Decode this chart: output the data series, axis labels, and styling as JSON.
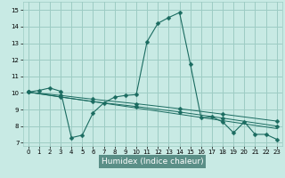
{
  "xlabel": "Humidex (Indice chaleur)",
  "xlim": [
    -0.5,
    23.5
  ],
  "ylim": [
    6.8,
    15.5
  ],
  "yticks": [
    7,
    8,
    9,
    10,
    11,
    12,
    13,
    14,
    15
  ],
  "xticks": [
    0,
    1,
    2,
    3,
    4,
    5,
    6,
    7,
    8,
    9,
    10,
    11,
    12,
    13,
    14,
    15,
    16,
    17,
    18,
    19,
    20,
    21,
    22,
    23
  ],
  "bg_color": "#c8eae4",
  "grid_color": "#9dccc4",
  "line_color": "#1a6b60",
  "marker": "D",
  "line1": {
    "x": [
      0,
      1,
      2,
      3,
      4,
      5,
      6,
      7,
      8,
      9,
      10,
      11,
      12,
      13,
      14,
      15,
      16,
      17,
      18,
      19,
      20,
      21,
      22,
      23
    ],
    "y": [
      10.05,
      10.15,
      10.3,
      10.1,
      7.3,
      7.45,
      8.8,
      9.4,
      9.75,
      9.85,
      9.9,
      13.1,
      14.2,
      14.55,
      14.85,
      11.75,
      8.5,
      8.55,
      8.25,
      7.6,
      8.25,
      7.5,
      7.5,
      7.2
    ]
  },
  "line2": {
    "x": [
      0,
      3,
      6,
      10,
      14,
      18,
      23
    ],
    "y": [
      10.05,
      9.85,
      9.62,
      9.35,
      9.05,
      8.72,
      8.3
    ]
  },
  "line3": {
    "x": [
      0,
      3,
      6,
      10,
      14,
      18,
      23
    ],
    "y": [
      10.05,
      9.75,
      9.48,
      9.18,
      8.85,
      8.48,
      8.0
    ]
  },
  "line4": {
    "x": [
      0,
      23
    ],
    "y": [
      10.05,
      7.85
    ]
  },
  "xlabel_bg": "#5a8f87",
  "xlabel_fg": "#ffffff"
}
